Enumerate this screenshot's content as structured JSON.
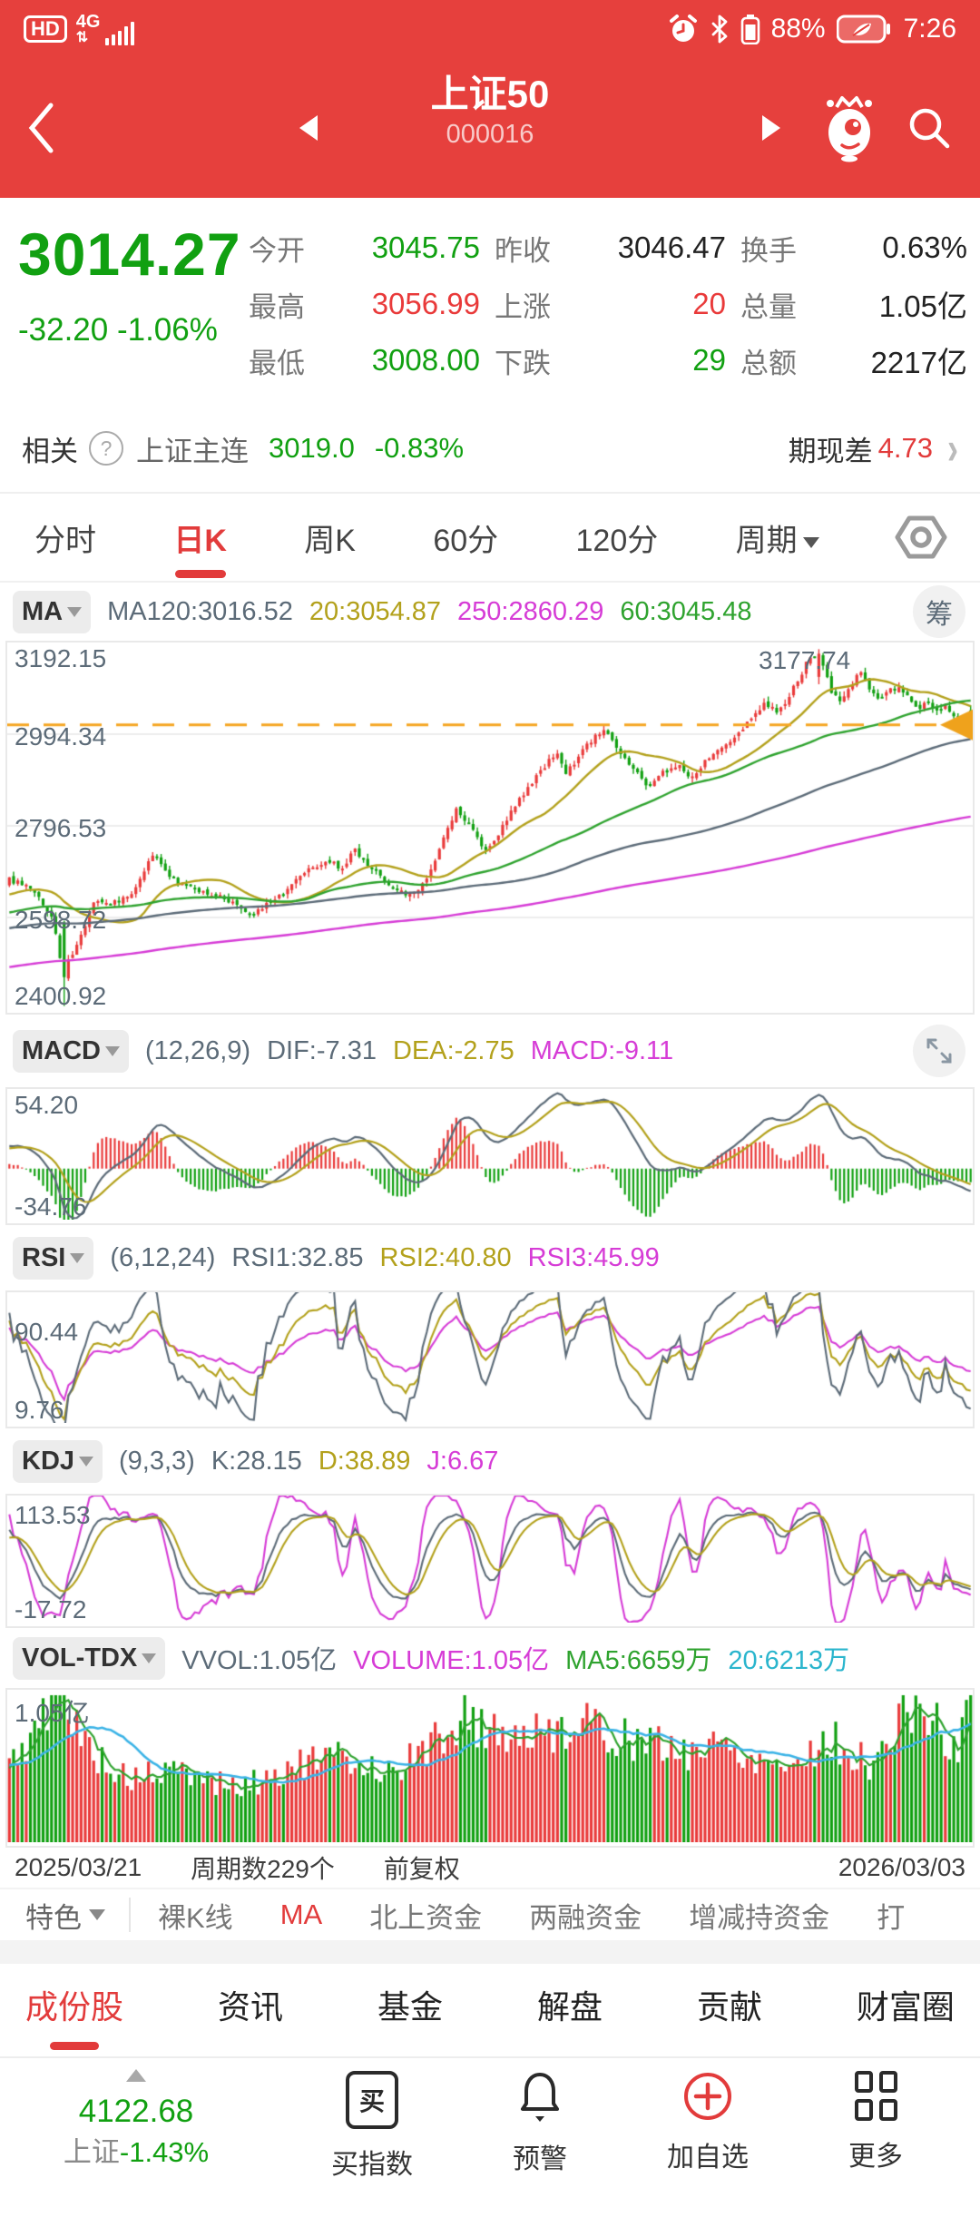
{
  "status_bar": {
    "hd": "HD",
    "network": "4G",
    "battery_pct": "88%",
    "time": "7:26",
    "icons": [
      "hd-icon",
      "signal-icon",
      "alarm-icon",
      "bluetooth-icon",
      "battery-icon",
      "power-saving-battery-icon"
    ]
  },
  "nav": {
    "title": "上证50",
    "code": "000016",
    "icons": [
      "back-icon",
      "prev-stock-icon",
      "next-stock-icon",
      "mascot-icon",
      "search-icon"
    ]
  },
  "quote": {
    "price": "3014.27",
    "change": "-32.20 -1.06%",
    "stats": [
      {
        "label": "今开",
        "value": "3045.75",
        "color": "green"
      },
      {
        "label": "昨收",
        "value": "3046.47",
        "color": "dark"
      },
      {
        "label": "换手",
        "value": "0.63%",
        "color": "dark"
      },
      {
        "label": "最高",
        "value": "3056.99",
        "color": "red"
      },
      {
        "label": "上涨",
        "value": "20",
        "color": "red"
      },
      {
        "label": "总量",
        "value": "1.05亿",
        "color": "dark"
      },
      {
        "label": "最低",
        "value": "3008.00",
        "color": "green"
      },
      {
        "label": "下跌",
        "value": "29",
        "color": "green"
      },
      {
        "label": "总额",
        "value": "2217亿",
        "color": "dark"
      }
    ]
  },
  "related": {
    "label": "相关",
    "help_icon": "?",
    "name": "上证主连",
    "price": "3019.0",
    "pct": "-0.83%",
    "spread_label": "期现差",
    "spread_value": "4.73"
  },
  "period_tabs": {
    "items": [
      "分时",
      "日K",
      "周K",
      "60分",
      "120分"
    ],
    "dropdown": "周期",
    "active": "日K"
  },
  "panes": {
    "ma": {
      "selector": "MA",
      "chip_icon": "筹",
      "items": [
        "MA120:3016.52",
        "20:3054.87",
        "250:2860.29",
        "60:3045.48"
      ]
    },
    "macd": {
      "selector": "MACD",
      "items": [
        "(12,26,9)",
        "DIF:-7.31",
        "DEA:-2.75",
        "MACD:-9.11"
      ]
    },
    "rsi": {
      "selector": "RSI",
      "items": [
        "(6,12,24)",
        "RSI1:32.85",
        "RSI2:40.80",
        "RSI3:45.99"
      ]
    },
    "kdj": {
      "selector": "KDJ",
      "items": [
        "(9,3,3)",
        "K:28.15",
        "D:38.89",
        "J:6.67"
      ]
    },
    "vol": {
      "selector": "VOL-TDX",
      "items": [
        "VVOL:1.05亿",
        "VOLUME:1.05亿",
        "MA5:6659万",
        "20:6213万"
      ]
    }
  },
  "axis": {
    "start": "2025/03/21",
    "periods": "周期数229个",
    "adjust": "前复权",
    "end": "2026/03/03"
  },
  "feature_row": {
    "selector": "特色",
    "items": [
      "裸K线",
      "MA",
      "北上资金",
      "两融资金",
      "增减持资金",
      "打"
    ],
    "active": "MA"
  },
  "section_tabs": {
    "items": [
      "成份股",
      "资讯",
      "基金",
      "解盘",
      "贡献",
      "财富圈"
    ],
    "active": "成份股"
  },
  "bottom_bar": {
    "index_value": "4122.68",
    "index_name": "上证",
    "index_pct": "-1.43%",
    "buttons": [
      {
        "icon": "buy-index-icon",
        "label": "买指数",
        "glyph": "买"
      },
      {
        "icon": "alert-bell-icon",
        "label": "预警"
      },
      {
        "icon": "add-watchlist-icon",
        "label": "加自选"
      },
      {
        "icon": "more-grid-icon",
        "label": "更多"
      }
    ]
  },
  "colors": {
    "app_red": "#e6403d",
    "up_red": "#e93a3a",
    "down_green": "#11a011",
    "accent_red": "#e23b3b",
    "slate": "#5c6b78",
    "olive": "#b3a11c",
    "magenta": "#d63cd6",
    "ma_green": "#2fa32f",
    "cyan_line": "#3bb3e6",
    "price_line_orange": "#f5a623"
  },
  "chart_data": [
    {
      "id": "main",
      "type": "candlestick",
      "periods": 229,
      "date_start": "2025/03/21",
      "date_end": "2026/03/03",
      "y_ticks": [
        "3192.15",
        "2994.34",
        "2796.53",
        "2598.72",
        "2400.92"
      ],
      "ylim": [
        2400.92,
        3192.15
      ],
      "current_price": 3014.27,
      "peak_label": "3177.74",
      "last_candle": {
        "open": 3045.75,
        "high": 3056.99,
        "low": 3008.0,
        "close": 3014.27
      },
      "crash": {
        "index": 13,
        "open": 2588,
        "close": 2470,
        "low": 2408,
        "high": 2592
      },
      "peak": {
        "index": 192,
        "open": 3118,
        "close": 3168,
        "high": 3177.74,
        "low": 3102
      },
      "prehistory": {
        "days": 280,
        "start": 2290,
        "end": 2655
      },
      "ma_periods": [
        20,
        60,
        120,
        250
      ],
      "ma_latest": {
        "ma20": 3054.87,
        "ma60": 3045.48,
        "ma120": 3016.52,
        "ma250": 2860.29
      },
      "close_anchors": [
        [
          0,
          2680
        ],
        [
          0.02,
          2665
        ],
        [
          0.045,
          2600
        ],
        [
          0.055,
          2480
        ],
        [
          0.075,
          2560
        ],
        [
          0.09,
          2640
        ],
        [
          0.11,
          2630
        ],
        [
          0.13,
          2655
        ],
        [
          0.15,
          2735
        ],
        [
          0.17,
          2680
        ],
        [
          0.2,
          2655
        ],
        [
          0.23,
          2635
        ],
        [
          0.255,
          2605
        ],
        [
          0.28,
          2645
        ],
        [
          0.305,
          2690
        ],
        [
          0.33,
          2725
        ],
        [
          0.345,
          2705
        ],
        [
          0.36,
          2745
        ],
        [
          0.38,
          2700
        ],
        [
          0.4,
          2665
        ],
        [
          0.42,
          2645
        ],
        [
          0.435,
          2690
        ],
        [
          0.45,
          2760
        ],
        [
          0.465,
          2830
        ],
        [
          0.48,
          2795
        ],
        [
          0.495,
          2740
        ],
        [
          0.51,
          2780
        ],
        [
          0.525,
          2840
        ],
        [
          0.54,
          2880
        ],
        [
          0.555,
          2920
        ],
        [
          0.57,
          2955
        ],
        [
          0.58,
          2910
        ],
        [
          0.59,
          2940
        ],
        [
          0.605,
          2980
        ],
        [
          0.62,
          3005
        ],
        [
          0.635,
          2960
        ],
        [
          0.65,
          2920
        ],
        [
          0.665,
          2880
        ],
        [
          0.68,
          2910
        ],
        [
          0.695,
          2930
        ],
        [
          0.71,
          2900
        ],
        [
          0.725,
          2940
        ],
        [
          0.74,
          2970
        ],
        [
          0.755,
          2990
        ],
        [
          0.77,
          3020
        ],
        [
          0.785,
          3060
        ],
        [
          0.8,
          3040
        ],
        [
          0.815,
          3090
        ],
        [
          0.83,
          3150
        ],
        [
          0.843,
          3170
        ],
        [
          0.855,
          3090
        ],
        [
          0.865,
          3060
        ],
        [
          0.875,
          3100
        ],
        [
          0.885,
          3125
        ],
        [
          0.895,
          3095
        ],
        [
          0.905,
          3070
        ],
        [
          0.915,
          3085
        ],
        [
          0.925,
          3100
        ],
        [
          0.935,
          3070
        ],
        [
          0.945,
          3050
        ],
        [
          0.955,
          3065
        ],
        [
          0.965,
          3040
        ],
        [
          0.975,
          3055
        ],
        [
          0.985,
          3030
        ],
        [
          1,
          3014.27
        ]
      ]
    },
    {
      "id": "macd",
      "type": "macd",
      "params": [
        12,
        26,
        9
      ],
      "dif": -7.31,
      "dea": -2.75,
      "macd": -9.11,
      "y_ticks": [
        "54.20",
        "-34.76"
      ],
      "ylim": [
        -34.76,
        54.2
      ]
    },
    {
      "id": "rsi",
      "type": "line",
      "params": [
        6,
        12,
        24
      ],
      "rsi1": 32.85,
      "rsi2": 40.8,
      "rsi3": 45.99,
      "y_ticks": [
        "90.44",
        "9.76"
      ],
      "ylim": [
        9.76,
        90.44
      ]
    },
    {
      "id": "kdj",
      "type": "line",
      "params": [
        9,
        3,
        3
      ],
      "k": 28.15,
      "d": 38.89,
      "j": 6.67,
      "y_ticks": [
        "113.53",
        "-17.72"
      ],
      "ylim": [
        -17.72,
        113.53
      ]
    },
    {
      "id": "vol",
      "type": "bar",
      "vvol": "1.05亿",
      "volume": "1.05亿",
      "ma5": "6659万",
      "ma20": "6213万",
      "y_ticks": [
        "1.05亿"
      ],
      "ylim_yi": [
        0,
        1.05
      ],
      "vol_anchors": [
        [
          0,
          0.55
        ],
        [
          0.05,
          1.0
        ],
        [
          0.08,
          0.7
        ],
        [
          0.12,
          0.45
        ],
        [
          0.18,
          0.5
        ],
        [
          0.24,
          0.38
        ],
        [
          0.3,
          0.55
        ],
        [
          0.35,
          0.6
        ],
        [
          0.4,
          0.5
        ],
        [
          0.45,
          0.75
        ],
        [
          0.47,
          0.9
        ],
        [
          0.5,
          0.8
        ],
        [
          0.55,
          0.75
        ],
        [
          0.58,
          0.85
        ],
        [
          0.62,
          0.8
        ],
        [
          0.66,
          0.7
        ],
        [
          0.7,
          0.65
        ],
        [
          0.74,
          0.7
        ],
        [
          0.78,
          0.6
        ],
        [
          0.82,
          0.55
        ],
        [
          0.85,
          0.75
        ],
        [
          0.88,
          0.6
        ],
        [
          0.9,
          0.55
        ],
        [
          0.93,
          0.9
        ],
        [
          0.95,
          1.0
        ],
        [
          0.97,
          0.75
        ],
        [
          0.985,
          0.6
        ],
        [
          1,
          1.05
        ]
      ]
    }
  ]
}
